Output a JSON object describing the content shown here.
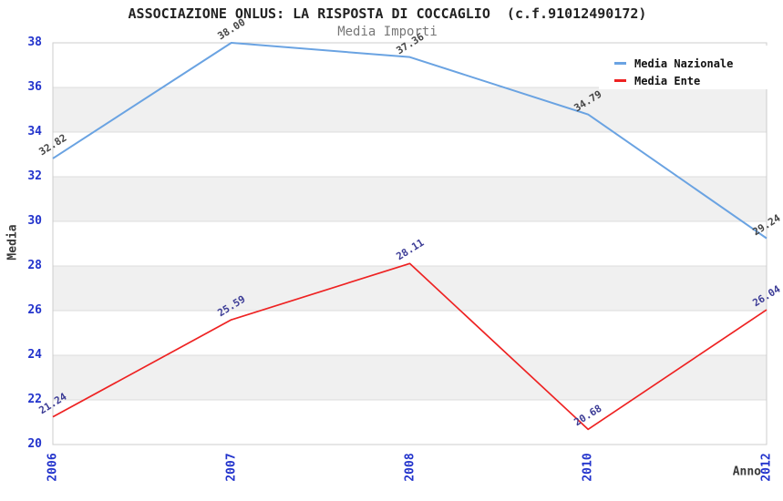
{
  "chart_data": {
    "type": "line",
    "title": "ASSOCIAZIONE ONLUS: LA RISPOSTA DI COCCAGLIO  (c.f.91012490172)",
    "subtitle": "Media Importi",
    "xlabel": "Anno",
    "ylabel": "Media",
    "categories": [
      "2006",
      "2007",
      "2008",
      "2010",
      "2012"
    ],
    "series": [
      {
        "name": "Media Nazionale",
        "color": "#6aa3e2",
        "label_color": "#454545",
        "values": [
          32.82,
          38.0,
          37.36,
          34.79,
          29.24
        ]
      },
      {
        "name": "Media Ente",
        "color": "#ee2222",
        "label_color": "#3c3c96",
        "values": [
          21.24,
          25.59,
          28.11,
          20.68,
          26.04
        ]
      }
    ],
    "ylim": [
      20,
      38
    ],
    "ytick_step": 2,
    "grid": true,
    "banded_background": true,
    "legend_position": "top-right",
    "colors": {
      "title": "#222222",
      "subtitle": "#777777",
      "axis_label": "#3a3a3a",
      "tick_label": "#2233cc",
      "band": "#f0f0f0",
      "gridline": "#dcdcdc",
      "plot_border": "#cccccc",
      "background": "#ffffff"
    }
  }
}
